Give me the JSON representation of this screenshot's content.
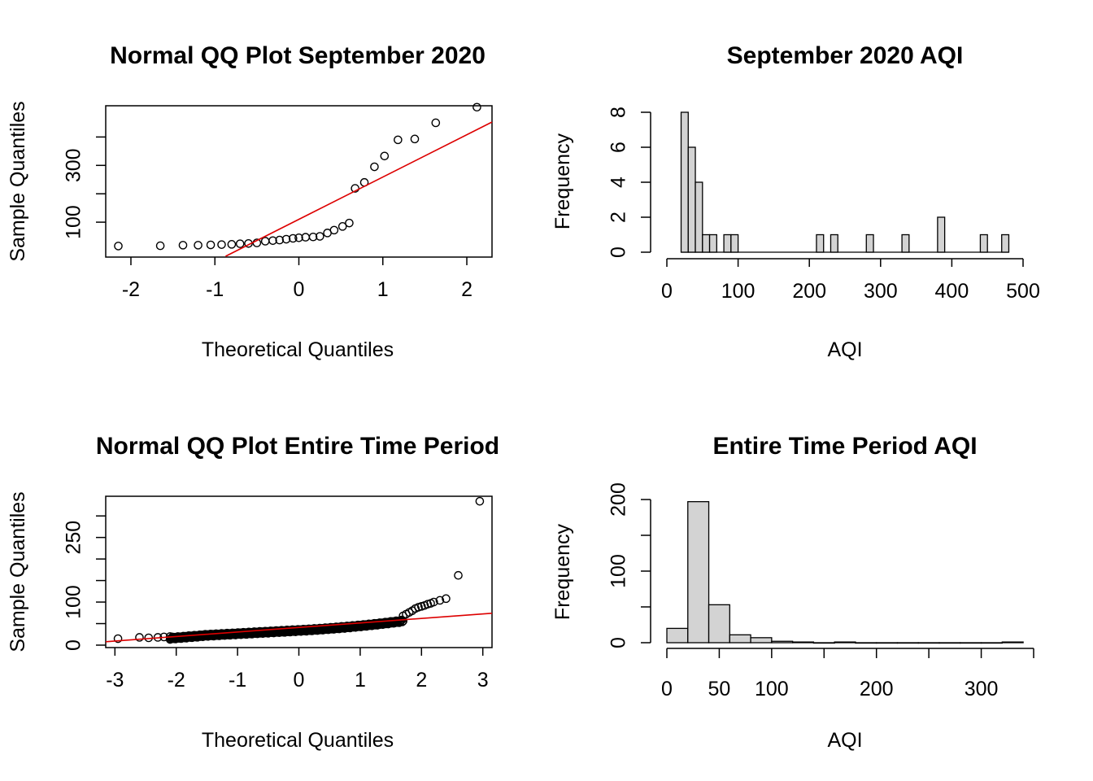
{
  "chart_data": [
    {
      "type": "scatter",
      "title": "Normal QQ Plot September 2020",
      "xlabel": "Theoretical Quantiles",
      "ylabel": "Sample Quantiles",
      "xlim": [
        -2.3,
        2.3
      ],
      "ylim": [
        0,
        500
      ],
      "xticks": [
        -2,
        -1,
        0,
        1,
        2
      ],
      "yticks": [
        100,
        300
      ],
      "grid": false,
      "x": [
        -2.15,
        -1.65,
        -1.38,
        -1.2,
        -1.05,
        -0.92,
        -0.8,
        -0.7,
        -0.6,
        -0.5,
        -0.4,
        -0.31,
        -0.23,
        -0.15,
        -0.07,
        0.0,
        0.08,
        0.17,
        0.25,
        0.34,
        0.42,
        0.52,
        0.6,
        0.67,
        0.78,
        0.9,
        1.02,
        1.18,
        1.38,
        1.63,
        2.12
      ],
      "y": [
        16,
        17,
        19,
        19,
        20,
        21,
        22,
        24,
        25,
        27,
        33,
        35,
        37,
        40,
        43,
        45,
        47,
        48,
        50,
        62,
        72,
        85,
        97,
        219,
        240,
        295,
        333,
        390,
        393,
        450,
        505
      ],
      "reference_line": {
        "color": "#dd0000",
        "intercept": 110,
        "slope": 149
      }
    },
    {
      "type": "bar",
      "title": "September 2020 AQI",
      "xlabel": "AQI",
      "ylabel": "Frequency",
      "xlim": [
        0,
        500
      ],
      "ylim": [
        0,
        8
      ],
      "xticks": [
        0,
        100,
        200,
        300,
        400,
        500
      ],
      "yticks": [
        0,
        2,
        4,
        6,
        8
      ],
      "bin_width": 10,
      "bins_from": [
        20,
        30,
        40,
        50,
        60,
        80,
        90,
        210,
        230,
        280,
        330,
        380,
        440,
        470
      ],
      "counts": [
        8,
        6,
        4,
        1,
        1,
        1,
        1,
        1,
        1,
        1,
        1,
        2,
        1,
        1
      ],
      "range": [
        20,
        480
      ],
      "fill": "#d3d3d3"
    },
    {
      "type": "scatter",
      "title": "Normal QQ Plot Entire Time Period",
      "xlabel": "Theoretical Quantiles",
      "ylabel": "Sample Quantiles",
      "xlim": [
        -3.15,
        3.15
      ],
      "ylim": [
        0,
        340
      ],
      "xticks": [
        -3,
        -2,
        -1,
        0,
        1,
        2,
        3
      ],
      "yticks": [
        0,
        100,
        250
      ],
      "grid": false,
      "outliers_x": [
        -2.95,
        -2.6,
        -2.45,
        -2.3,
        -2.2,
        -2.1,
        1.7,
        1.75,
        1.8,
        1.85,
        1.9,
        1.95,
        2.0,
        2.05,
        2.1,
        2.15,
        2.2,
        2.3,
        2.4,
        2.6,
        2.95
      ],
      "outliers_y": [
        15,
        18,
        17,
        18,
        19,
        20,
        68,
        72,
        76,
        80,
        85,
        88,
        90,
        92,
        95,
        97,
        100,
        104,
        108,
        162,
        334
      ],
      "reference_line": {
        "color": "#dd0000",
        "intercept": 41,
        "slope": 10.5
      }
    },
    {
      "type": "bar",
      "title": "Entire Time Period AQI",
      "xlabel": "AQI",
      "ylabel": "Frequency",
      "xlim": [
        0,
        350
      ],
      "ylim": [
        0,
        200
      ],
      "xticks": [
        0,
        50,
        100,
        200,
        300
      ],
      "yticks": [
        0,
        100,
        200
      ],
      "bin_width": 20,
      "bins_from": [
        0,
        20,
        40,
        60,
        80,
        100,
        120,
        140,
        160,
        180,
        200,
        220,
        240,
        260,
        280,
        300,
        320
      ],
      "counts": [
        20,
        197,
        53,
        11,
        7,
        2,
        1,
        0,
        1,
        0,
        0,
        0,
        0,
        0,
        0,
        0,
        1
      ],
      "fill": "#d3d3d3"
    }
  ]
}
